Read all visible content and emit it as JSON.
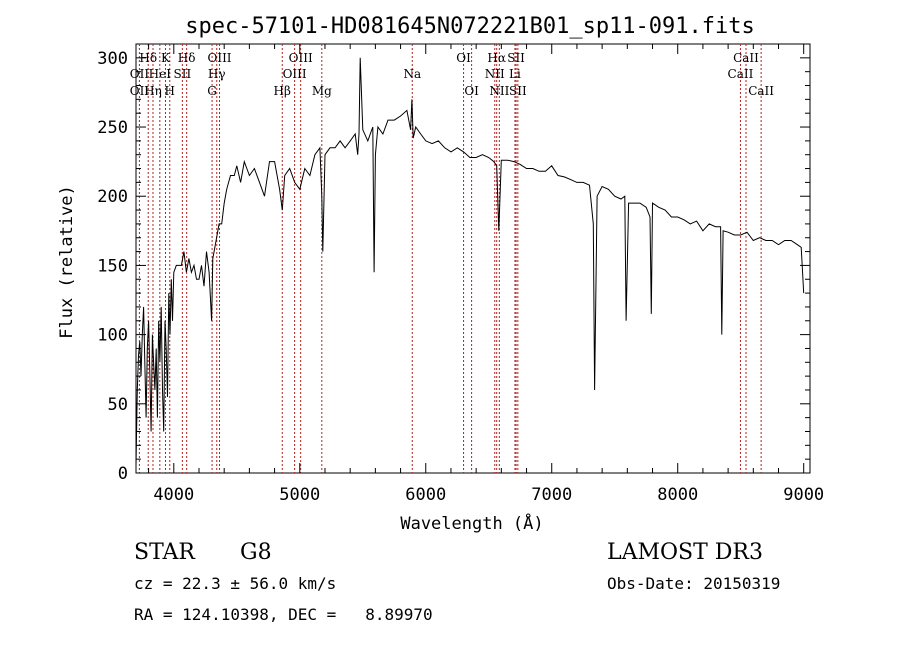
{
  "chart_data": {
    "type": "line",
    "title": "spec-57101-HD081645N072221B01_sp11-091.fits",
    "xlabel": "Wavelength (Å)",
    "ylabel": "Flux (relative)",
    "xlim": [
      3700,
      9050
    ],
    "ylim": [
      0,
      310
    ],
    "xticks": [
      4000,
      5000,
      6000,
      7000,
      8000,
      9000
    ],
    "yticks": [
      0,
      50,
      100,
      150,
      200,
      250,
      300
    ],
    "series": [
      {
        "name": "flux",
        "x": [
          3700,
          3710,
          3720,
          3730,
          3740,
          3750,
          3760,
          3770,
          3780,
          3790,
          3800,
          3810,
          3820,
          3830,
          3840,
          3850,
          3860,
          3870,
          3880,
          3890,
          3900,
          3910,
          3920,
          3930,
          3940,
          3950,
          3960,
          3970,
          3980,
          3990,
          4000,
          4020,
          4040,
          4060,
          4080,
          4100,
          4120,
          4140,
          4160,
          4180,
          4200,
          4220,
          4240,
          4260,
          4280,
          4300,
          4310,
          4320,
          4340,
          4360,
          4380,
          4400,
          4420,
          4450,
          4480,
          4500,
          4530,
          4560,
          4600,
          4640,
          4680,
          4720,
          4760,
          4800,
          4840,
          4861,
          4880,
          4920,
          4960,
          5000,
          5040,
          5080,
          5120,
          5160,
          5175,
          5183,
          5200,
          5240,
          5280,
          5320,
          5360,
          5400,
          5440,
          5460,
          5470,
          5480,
          5500,
          5540,
          5580,
          5590,
          5600,
          5620,
          5660,
          5700,
          5750,
          5800,
          5850,
          5880,
          5890,
          5900,
          5920,
          5960,
          6000,
          6050,
          6100,
          6150,
          6200,
          6250,
          6300,
          6350,
          6400,
          6450,
          6500,
          6540,
          6563,
          6580,
          6600,
          6650,
          6700,
          6750,
          6800,
          6850,
          6900,
          6950,
          7000,
          7050,
          7100,
          7150,
          7200,
          7250,
          7300,
          7330,
          7340,
          7360,
          7400,
          7450,
          7500,
          7550,
          7580,
          7590,
          7610,
          7650,
          7700,
          7750,
          7780,
          7790,
          7800,
          7850,
          7900,
          7950,
          8000,
          8050,
          8100,
          8150,
          8200,
          8250,
          8300,
          8340,
          8350,
          8360,
          8400,
          8450,
          8500,
          8550,
          8600,
          8650,
          8700,
          8750,
          8800,
          8850,
          8900,
          8950,
          8980,
          9000
        ],
        "values": [
          5,
          60,
          85,
          95,
          70,
          100,
          120,
          80,
          40,
          90,
          110,
          70,
          30,
          100,
          80,
          60,
          90,
          40,
          110,
          80,
          120,
          60,
          30,
          110,
          90,
          55,
          130,
          100,
          140,
          110,
          145,
          150,
          150,
          150,
          160,
          145,
          155,
          145,
          150,
          140,
          140,
          150,
          135,
          160,
          145,
          110,
          155,
          160,
          170,
          180,
          180,
          195,
          205,
          215,
          215,
          222,
          210,
          225,
          215,
          220,
          210,
          200,
          225,
          225,
          205,
          190,
          215,
          220,
          210,
          205,
          220,
          215,
          230,
          235,
          200,
          160,
          230,
          235,
          235,
          240,
          235,
          240,
          245,
          230,
          245,
          300,
          248,
          240,
          250,
          145,
          230,
          250,
          245,
          255,
          255,
          258,
          262,
          248,
          270,
          242,
          250,
          245,
          240,
          238,
          240,
          235,
          232,
          235,
          232,
          228,
          228,
          230,
          228,
          225,
          222,
          175,
          226,
          226,
          225,
          223,
          220,
          220,
          218,
          218,
          222,
          215,
          214,
          212,
          210,
          210,
          208,
          180,
          60,
          200,
          207,
          205,
          200,
          198,
          200,
          110,
          195,
          195,
          195,
          192,
          185,
          115,
          195,
          192,
          190,
          185,
          185,
          183,
          180,
          182,
          175,
          180,
          178,
          178,
          100,
          175,
          174,
          172,
          172,
          174,
          168,
          170,
          168,
          168,
          165,
          168,
          168,
          165,
          163,
          130
        ]
      }
    ],
    "line_labels": [
      {
        "name": "Hδ",
        "wl": 3797,
        "row": 1
      },
      {
        "name": "OII",
        "wl": 3727,
        "row": 2
      },
      {
        "name": "OII",
        "wl": 3727,
        "row": 3
      },
      {
        "name": "K",
        "wl": 3934,
        "row": 1
      },
      {
        "name": "HeI",
        "wl": 3889,
        "row": 2
      },
      {
        "name": "Hη",
        "wl": 3835,
        "row": 3
      },
      {
        "name": "SII",
        "wl": 4068,
        "row": 2
      },
      {
        "name": "H",
        "wl": 3968,
        "row": 3
      },
      {
        "name": "Hδ",
        "wl": 4102,
        "row": 1
      },
      {
        "name": "OIII",
        "wl": 4363,
        "row": 1
      },
      {
        "name": "Hγ",
        "wl": 4341,
        "row": 2
      },
      {
        "name": "G",
        "wl": 4304,
        "row": 3
      },
      {
        "name": "Hβ",
        "wl": 4861,
        "row": 3
      },
      {
        "name": "OIII",
        "wl": 5007,
        "row": 1
      },
      {
        "name": "OIII",
        "wl": 4959,
        "row": 2
      },
      {
        "name": "Mg",
        "wl": 5175,
        "row": 3
      },
      {
        "name": "Na",
        "wl": 5893,
        "row": 2
      },
      {
        "name": "OI",
        "wl": 6300,
        "row": 1
      },
      {
        "name": "OI",
        "wl": 6364,
        "row": 3
      },
      {
        "name": "Hα",
        "wl": 6563,
        "row": 1
      },
      {
        "name": "SII",
        "wl": 6717,
        "row": 1
      },
      {
        "name": "NII",
        "wl": 6548,
        "row": 2
      },
      {
        "name": "Li",
        "wl": 6708,
        "row": 2
      },
      {
        "name": "NII",
        "wl": 6584,
        "row": 3
      },
      {
        "name": "SII",
        "wl": 6731,
        "row": 3
      },
      {
        "name": "CaII",
        "wl": 8542,
        "row": 1
      },
      {
        "name": "CaII",
        "wl": 8498,
        "row": 2
      },
      {
        "name": "CaII",
        "wl": 8662,
        "row": 3
      }
    ],
    "line_markers": [
      3727,
      3797,
      3835,
      3889,
      3934,
      3968,
      4068,
      4102,
      4304,
      4341,
      4363,
      4861,
      4959,
      5007,
      5175,
      5893,
      6300,
      6364,
      6548,
      6563,
      6584,
      6708,
      6717,
      6731,
      8498,
      8542,
      8662
    ],
    "colors": {
      "spectrum": "#000000",
      "markers": "#b22222",
      "axes": "#000000"
    }
  },
  "info": {
    "object_class": "STAR",
    "subclass": "G8",
    "survey": "LAMOST DR3",
    "cz": "cz = 22.3 ± 56.0 km/s",
    "obs_date": "Obs-Date: 20150319",
    "coords": "RA = 124.10398, DEC =   8.89970"
  }
}
